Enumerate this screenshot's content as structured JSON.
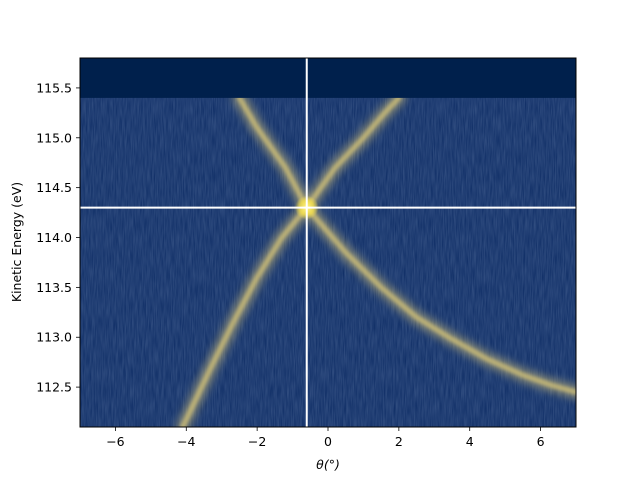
{
  "chart_data": {
    "type": "heatmap",
    "title": "",
    "xlabel": "θ(°)",
    "ylabel": "Kinetic Energy (eV)",
    "xlim": [
      -7,
      7
    ],
    "ylim": [
      112.1,
      115.8
    ],
    "x_ticks": [
      -6,
      -4,
      -2,
      0,
      2,
      4,
      6
    ],
    "x_tick_labels": [
      "−6",
      "−4",
      "−2",
      "0",
      "2",
      "4",
      "6"
    ],
    "y_ticks": [
      112.5,
      113.0,
      113.5,
      114.0,
      114.5,
      115.0,
      115.5
    ],
    "y_tick_labels": [
      "112.5",
      "113.0",
      "113.5",
      "114.0",
      "114.5",
      "115.0",
      "115.5"
    ],
    "colormap": "cividis",
    "background_color": "#0b2a63",
    "band_color": "#c7b877",
    "peak_color": "#ffe945",
    "cutoff_energy": 115.4,
    "cutoff_region_color": "#00204c",
    "cursor": {
      "theta": -0.6,
      "energy": 114.3,
      "color": "#ffffff"
    },
    "bands": [
      {
        "points": [
          [
            -4.1,
            112.1
          ],
          [
            -3.3,
            112.7
          ],
          [
            -2.6,
            113.2
          ],
          [
            -2.0,
            113.6
          ],
          [
            -1.3,
            114.0
          ],
          [
            -0.6,
            114.3
          ],
          [
            0.2,
            114.7
          ],
          [
            1.0,
            115.0
          ],
          [
            1.6,
            115.25
          ],
          [
            2.0,
            115.4
          ]
        ]
      },
      {
        "points": [
          [
            -2.5,
            115.4
          ],
          [
            -2.0,
            115.1
          ],
          [
            -1.2,
            114.7
          ],
          [
            -0.6,
            114.3
          ],
          [
            0.5,
            113.85
          ],
          [
            1.5,
            113.5
          ],
          [
            2.5,
            113.2
          ],
          [
            3.5,
            112.98
          ],
          [
            4.5,
            112.78
          ],
          [
            5.5,
            112.62
          ],
          [
            6.3,
            112.52
          ],
          [
            7.0,
            112.45
          ]
        ]
      }
    ]
  }
}
